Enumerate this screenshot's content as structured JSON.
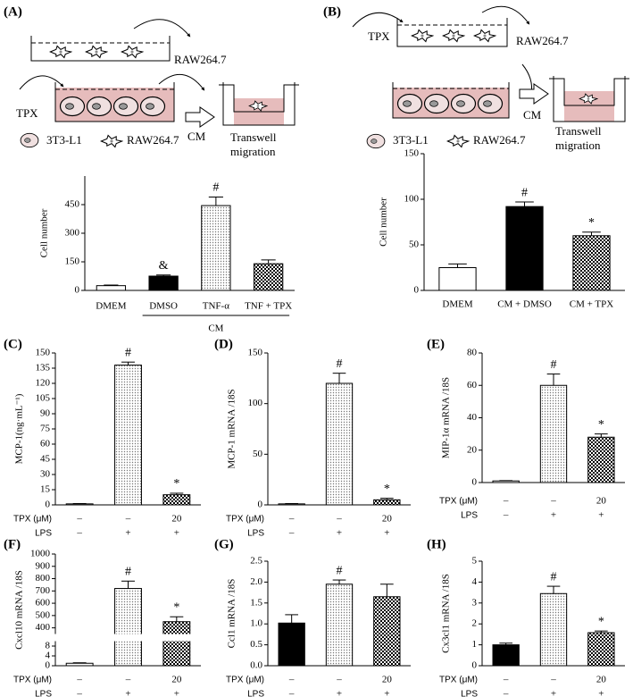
{
  "diagrams": [
    {
      "top_cells": "RAW264.7",
      "drug": "TPX",
      "medium": "CM",
      "well_line1": "Transwell",
      "well_line2": "migration",
      "legend_a": "3T3-L1",
      "legend_b": "RAW264.7"
    },
    {
      "top_cells": "RAW264.7",
      "drug": "TPX",
      "medium": "CM",
      "well_line1": "Transwell",
      "well_line2": "migration",
      "legend_a": "3T3-L1",
      "legend_b": "RAW264.7"
    }
  ],
  "chart_data": [
    {
      "type": "bar",
      "label": "(A)",
      "y_label": "Cell number",
      "categories": [
        "DMEM",
        "DMSO",
        "TNF-α",
        "TNF + TPX"
      ],
      "group_label": "CM",
      "values": [
        25,
        75,
        445,
        140
      ],
      "errors": [
        3,
        6,
        45,
        20
      ],
      "annotations": [
        null,
        "&",
        "#",
        null
      ],
      "bar_styles": [
        "white",
        "black",
        "dotted",
        "checkered"
      ],
      "ylim": [
        0,
        600
      ],
      "yticks": [
        0,
        150,
        300,
        450
      ]
    },
    {
      "type": "bar",
      "label": "(B)",
      "y_label": "Cell number",
      "categories": [
        "DMEM",
        "CM + DMSO",
        "CM + TPX"
      ],
      "values": [
        25,
        92,
        60
      ],
      "errors": [
        4,
        5,
        4
      ],
      "annotations": [
        null,
        "#",
        "*"
      ],
      "bar_styles": [
        "white",
        "black",
        "checkered"
      ],
      "ylim": [
        0,
        150
      ],
      "yticks": [
        0,
        50,
        100,
        150
      ]
    },
    {
      "type": "bar",
      "label": "(C)",
      "y_label": "MCP-1(ng·mL⁻¹)",
      "row_labels": [
        "TPX (μM)",
        "LPS"
      ],
      "rows": [
        [
          "–",
          "–",
          "20"
        ],
        [
          "–",
          "+",
          "+"
        ]
      ],
      "values": [
        1,
        138,
        10
      ],
      "errors": [
        0.3,
        3,
        1.5
      ],
      "annotations": [
        null,
        "#",
        "*"
      ],
      "bar_styles": [
        "white",
        "dotted",
        "checkered"
      ],
      "ylim": [
        0,
        150
      ],
      "yticks": [
        0,
        15,
        30,
        45,
        60,
        75,
        90,
        105,
        120,
        135,
        150
      ]
    },
    {
      "type": "bar",
      "label": "(D)",
      "y_label": "MCP-1 mRNA /18S",
      "row_labels": [
        "TPX (μM)",
        "LPS"
      ],
      "rows": [
        [
          "–",
          "–",
          "20"
        ],
        [
          "–",
          "+",
          "+"
        ]
      ],
      "values": [
        1,
        120,
        5
      ],
      "errors": [
        0.3,
        10,
        1.5
      ],
      "annotations": [
        null,
        "#",
        "*"
      ],
      "bar_styles": [
        "white",
        "dotted",
        "checkered"
      ],
      "ylim": [
        0,
        150
      ],
      "yticks": [
        0,
        50,
        100,
        150
      ]
    },
    {
      "type": "bar",
      "label": "(E)",
      "y_label": "MIP-1α mRNA /18S",
      "row_labels": [
        "TPX (μM)",
        "LPS"
      ],
      "rows": [
        [
          "–",
          "–",
          "20"
        ],
        [
          "–",
          "+",
          "+"
        ]
      ],
      "values": [
        1,
        60,
        28
      ],
      "errors": [
        0.2,
        7,
        2
      ],
      "annotations": [
        null,
        "#",
        "*"
      ],
      "bar_styles": [
        "white",
        "dotted",
        "checkered"
      ],
      "ylim": [
        0,
        80
      ],
      "yticks": [
        0,
        20,
        40,
        60,
        80
      ]
    },
    {
      "type": "bar",
      "label": "(F)",
      "y_label": "Cxcl10 mRNA /18S",
      "row_labels": [
        "TPX (μM)",
        "LPS"
      ],
      "rows": [
        [
          "–",
          "–",
          "20"
        ],
        [
          "–",
          "+",
          "+"
        ]
      ],
      "values": [
        1,
        720,
        450
      ],
      "errors": [
        0.2,
        60,
        40
      ],
      "annotations": [
        null,
        "#",
        "*"
      ],
      "bar_styles": [
        "white",
        "dotted",
        "checkered"
      ],
      "ysegments": [
        [
          0,
          10
        ],
        [
          350,
          1000
        ]
      ],
      "yticks": [
        0,
        4,
        8,
        400,
        500,
        600,
        700,
        800,
        900,
        1000
      ]
    },
    {
      "type": "bar",
      "label": "(G)",
      "y_label": "Ccl1 mRNA /18S",
      "row_labels": [
        "TPX (μM)",
        "LPS"
      ],
      "rows": [
        [
          "–",
          "–",
          "20"
        ],
        [
          "–",
          "+",
          "+"
        ]
      ],
      "values": [
        1.02,
        1.95,
        1.65
      ],
      "errors": [
        0.2,
        0.1,
        0.3
      ],
      "annotations": [
        null,
        "#",
        null
      ],
      "bar_styles": [
        "black",
        "dotted",
        "checkered"
      ],
      "ylim": [
        0,
        2.5
      ],
      "yticks": [
        {
          "value": 0,
          "label": "0.0"
        },
        0.5,
        {
          "value": 1,
          "label": "1.0"
        },
        1.5,
        {
          "value": 2,
          "label": "2.0"
        },
        2.5
      ]
    },
    {
      "type": "bar",
      "label": "(H)",
      "y_label": "Cx3cl1 mRNA /18S",
      "row_labels": [
        "TPX (μM)",
        "LPS"
      ],
      "rows": [
        [
          "–",
          "–",
          "20"
        ],
        [
          "–",
          "+",
          "+"
        ]
      ],
      "values": [
        1,
        3.45,
        1.58
      ],
      "errors": [
        0.08,
        0.35,
        0.08
      ],
      "annotations": [
        null,
        "#",
        "*"
      ],
      "bar_styles": [
        "black",
        "dotted",
        "checkered"
      ],
      "ylim": [
        0,
        5
      ],
      "yticks": [
        0,
        1,
        2,
        3,
        4,
        5
      ]
    }
  ]
}
